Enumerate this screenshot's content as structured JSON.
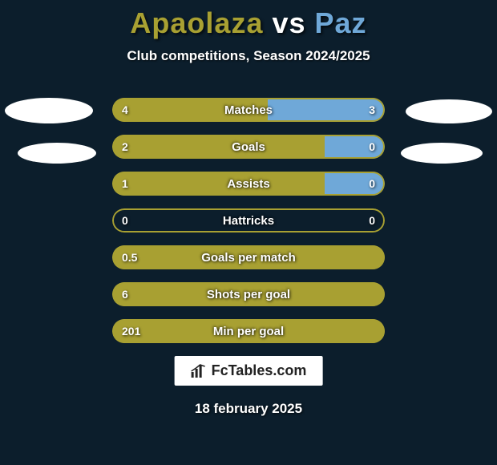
{
  "title": {
    "left": "Apaolaza",
    "mid": " vs ",
    "right": "Paz",
    "left_color": "#a8a032",
    "right_color": "#6fa8d8"
  },
  "subtitle": "Club competitions, Season 2024/2025",
  "colors": {
    "left_fill": "#a8a032",
    "right_fill": "#6fa8d8",
    "outline": "#a8a032",
    "background": "#0c1e2c",
    "text": "#ffffff"
  },
  "bars": [
    {
      "label": "Matches",
      "left_val": "4",
      "right_val": "3",
      "left_pct": 57,
      "right_pct": 43
    },
    {
      "label": "Goals",
      "left_val": "2",
      "right_val": "0",
      "left_pct": 78,
      "right_pct": 22
    },
    {
      "label": "Assists",
      "left_val": "1",
      "right_val": "0",
      "left_pct": 78,
      "right_pct": 22
    },
    {
      "label": "Hattricks",
      "left_val": "0",
      "right_val": "0",
      "left_pct": 0,
      "right_pct": 0
    },
    {
      "label": "Goals per match",
      "left_val": "0.5",
      "right_val": "",
      "left_pct": 100,
      "right_pct": 0
    },
    {
      "label": "Shots per goal",
      "left_val": "6",
      "right_val": "",
      "left_pct": 100,
      "right_pct": 0
    },
    {
      "label": "Min per goal",
      "left_val": "201",
      "right_val": "",
      "left_pct": 100,
      "right_pct": 0
    }
  ],
  "brand": "FcTables.com",
  "date": "18 february 2025"
}
